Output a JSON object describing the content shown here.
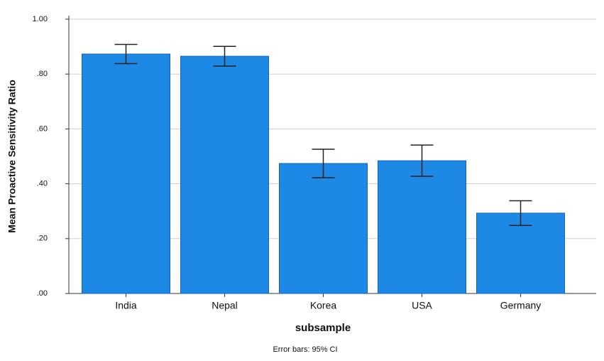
{
  "chart_data": {
    "type": "bar",
    "x_label": "subsample",
    "y_label": "Mean Proactive Sensitivity Ratio",
    "note": "Error bars: 95% CI",
    "categories": [
      "India",
      "Nepal",
      "Korea",
      "USA",
      "Germany"
    ],
    "values": [
      0.873,
      0.865,
      0.474,
      0.484,
      0.293
    ],
    "errors": [
      0.035,
      0.036,
      0.052,
      0.057,
      0.045
    ],
    "color": "#1e88e5",
    "ylim": [
      0,
      1
    ],
    "yticks": [
      {
        "value": 0,
        "label": ".00"
      },
      {
        "value": 0.2,
        "label": ".20"
      },
      {
        "value": 0.4,
        "label": ".40"
      },
      {
        "value": 0.6,
        "label": ".60"
      },
      {
        "value": 0.8,
        "label": ".80"
      },
      {
        "value": 1,
        "label": "1.00"
      }
    ],
    "grid": true
  }
}
